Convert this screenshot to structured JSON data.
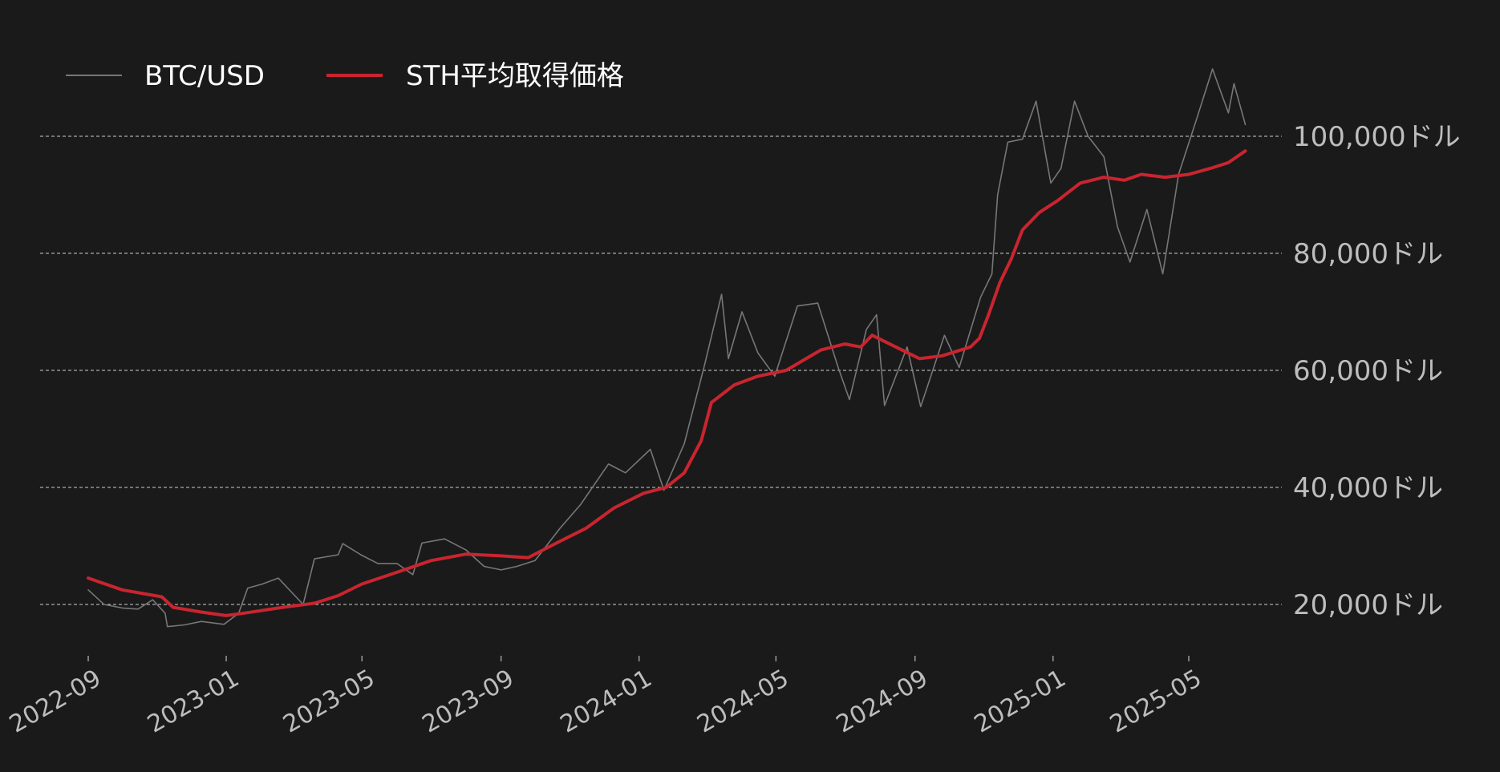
{
  "chart_data": {
    "type": "line",
    "title": "",
    "xlabel": "",
    "ylabel": "",
    "legend_position": "top-left",
    "grid": "horizontal dashed",
    "x_range": [
      "2022-08",
      "2025-06"
    ],
    "ylim": [
      13000,
      112000
    ],
    "y_ticks": [
      {
        "value": 20000,
        "label": "20,000ドル"
      },
      {
        "value": 40000,
        "label": "40,000ドル"
      },
      {
        "value": 60000,
        "label": "60,000ドル"
      },
      {
        "value": 80000,
        "label": "80,000ドル"
      },
      {
        "value": 100000,
        "label": "100,000ドル"
      }
    ],
    "x_ticks": [
      "2022-09",
      "2023-01",
      "2023-05",
      "2023-09",
      "2024-01",
      "2024-05",
      "2024-09",
      "2025-01",
      "2025-05"
    ],
    "series": [
      {
        "name": "BTC/USD",
        "color": "#777777",
        "points": [
          [
            "2022-09-01",
            22500
          ],
          [
            "2022-09-15",
            20000
          ],
          [
            "2022-10-01",
            19400
          ],
          [
            "2022-10-15",
            19200
          ],
          [
            "2022-10-28",
            20800
          ],
          [
            "2022-11-08",
            18500
          ],
          [
            "2022-11-10",
            16200
          ],
          [
            "2022-11-25",
            16500
          ],
          [
            "2022-12-10",
            17100
          ],
          [
            "2022-12-30",
            16600
          ],
          [
            "2023-01-12",
            18500
          ],
          [
            "2023-01-20",
            22800
          ],
          [
            "2023-02-02",
            23500
          ],
          [
            "2023-02-16",
            24500
          ],
          [
            "2023-03-10",
            20000
          ],
          [
            "2023-03-20",
            27800
          ],
          [
            "2023-04-10",
            28500
          ],
          [
            "2023-04-14",
            30400
          ],
          [
            "2023-04-30",
            28500
          ],
          [
            "2023-05-15",
            27000
          ],
          [
            "2023-06-01",
            27000
          ],
          [
            "2023-06-15",
            25100
          ],
          [
            "2023-06-23",
            30500
          ],
          [
            "2023-07-13",
            31200
          ],
          [
            "2023-08-01",
            29300
          ],
          [
            "2023-08-17",
            26500
          ],
          [
            "2023-09-01",
            25900
          ],
          [
            "2023-09-15",
            26500
          ],
          [
            "2023-10-01",
            27500
          ],
          [
            "2023-10-23",
            33000
          ],
          [
            "2023-11-10",
            37000
          ],
          [
            "2023-12-05",
            44000
          ],
          [
            "2023-12-20",
            42500
          ],
          [
            "2024-01-11",
            46500
          ],
          [
            "2024-01-23",
            39500
          ],
          [
            "2024-02-10",
            47500
          ],
          [
            "2024-02-28",
            61000
          ],
          [
            "2024-03-14",
            73000
          ],
          [
            "2024-03-20",
            62000
          ],
          [
            "2024-04-01",
            70000
          ],
          [
            "2024-04-15",
            63000
          ],
          [
            "2024-04-30",
            59000
          ],
          [
            "2024-05-20",
            71000
          ],
          [
            "2024-06-07",
            71500
          ],
          [
            "2024-06-25",
            60500
          ],
          [
            "2024-07-05",
            55000
          ],
          [
            "2024-07-20",
            67000
          ],
          [
            "2024-07-29",
            69500
          ],
          [
            "2024-08-05",
            54000
          ],
          [
            "2024-08-25",
            64000
          ],
          [
            "2024-09-06",
            53800
          ],
          [
            "2024-09-27",
            66000
          ],
          [
            "2024-10-10",
            60500
          ],
          [
            "2024-10-29",
            72500
          ],
          [
            "2024-11-08",
            76500
          ],
          [
            "2024-11-13",
            90000
          ],
          [
            "2024-11-22",
            99000
          ],
          [
            "2024-12-05",
            99500
          ],
          [
            "2024-12-17",
            106000
          ],
          [
            "2024-12-30",
            92000
          ],
          [
            "2025-01-08",
            94500
          ],
          [
            "2025-01-20",
            106000
          ],
          [
            "2025-02-01",
            100000
          ],
          [
            "2025-02-15",
            96500
          ],
          [
            "2025-02-27",
            84500
          ],
          [
            "2025-03-10",
            78500
          ],
          [
            "2025-03-25",
            87500
          ],
          [
            "2025-04-08",
            76500
          ],
          [
            "2025-04-22",
            93500
          ],
          [
            "2025-05-08",
            103000
          ],
          [
            "2025-05-22",
            111500
          ],
          [
            "2025-06-05",
            104000
          ],
          [
            "2025-06-10",
            109000
          ],
          [
            "2025-06-20",
            102000
          ]
        ]
      },
      {
        "name": "STH平均取得価格",
        "color": "#c9252f",
        "points": [
          [
            "2022-09-01",
            24500
          ],
          [
            "2022-10-01",
            22500
          ],
          [
            "2022-11-05",
            21300
          ],
          [
            "2022-11-15",
            19500
          ],
          [
            "2022-12-10",
            18700
          ],
          [
            "2023-01-01",
            18100
          ],
          [
            "2023-01-20",
            18600
          ],
          [
            "2023-02-20",
            19500
          ],
          [
            "2023-03-20",
            20200
          ],
          [
            "2023-04-10",
            21500
          ],
          [
            "2023-05-01",
            23500
          ],
          [
            "2023-06-01",
            25500
          ],
          [
            "2023-07-01",
            27500
          ],
          [
            "2023-08-01",
            28600
          ],
          [
            "2023-09-01",
            28300
          ],
          [
            "2023-09-25",
            28000
          ],
          [
            "2023-10-20",
            30500
          ],
          [
            "2023-11-15",
            33000
          ],
          [
            "2023-12-10",
            36500
          ],
          [
            "2024-01-05",
            39000
          ],
          [
            "2024-01-25",
            40000
          ],
          [
            "2024-02-10",
            42500
          ],
          [
            "2024-02-25",
            48000
          ],
          [
            "2024-03-05",
            54500
          ],
          [
            "2024-03-25",
            57500
          ],
          [
            "2024-04-15",
            59000
          ],
          [
            "2024-05-10",
            60000
          ],
          [
            "2024-06-10",
            63500
          ],
          [
            "2024-07-01",
            64500
          ],
          [
            "2024-07-15",
            64000
          ],
          [
            "2024-07-25",
            66000
          ],
          [
            "2024-08-15",
            64000
          ],
          [
            "2024-09-05",
            62000
          ],
          [
            "2024-09-25",
            62500
          ],
          [
            "2024-10-20",
            64000
          ],
          [
            "2024-10-28",
            65500
          ],
          [
            "2024-11-05",
            69500
          ],
          [
            "2024-11-15",
            75000
          ],
          [
            "2024-11-25",
            79000
          ],
          [
            "2024-12-05",
            84000
          ],
          [
            "2024-12-20",
            87000
          ],
          [
            "2025-01-05",
            89000
          ],
          [
            "2025-01-25",
            92000
          ],
          [
            "2025-02-15",
            93000
          ],
          [
            "2025-03-05",
            92500
          ],
          [
            "2025-03-20",
            93500
          ],
          [
            "2025-04-10",
            93000
          ],
          [
            "2025-05-01",
            93500
          ],
          [
            "2025-05-20",
            94500
          ],
          [
            "2025-06-05",
            95500
          ],
          [
            "2025-06-20",
            97500
          ]
        ]
      }
    ]
  }
}
